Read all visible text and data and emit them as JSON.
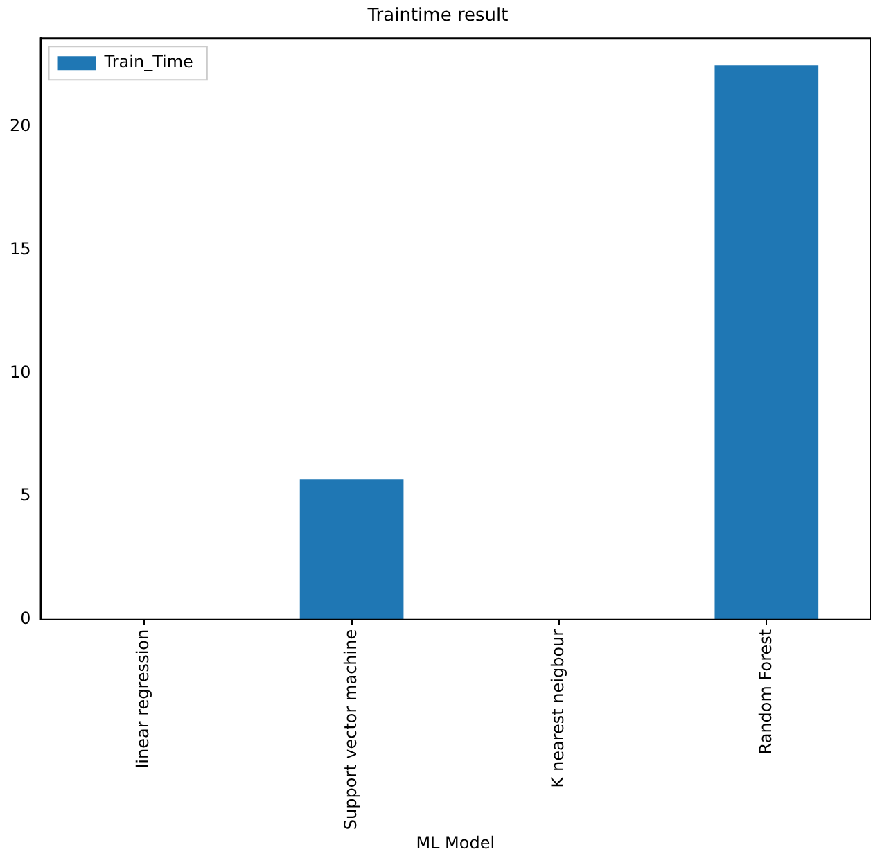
{
  "chart_data": {
    "type": "bar",
    "title": "Traintime result",
    "xlabel": "ML Model",
    "categories": [
      "linear regression",
      "Support vector machine",
      "K nearest neigbour",
      "Random Forest"
    ],
    "series": [
      {
        "name": "Train_Time",
        "color": "#1f77b4",
        "values": [
          0,
          5.7,
          0,
          22.5
        ]
      }
    ],
    "ylim": [
      0,
      23.6
    ],
    "yticks": [
      0,
      5,
      10,
      15,
      20
    ],
    "grid": false,
    "legend": "top left"
  }
}
